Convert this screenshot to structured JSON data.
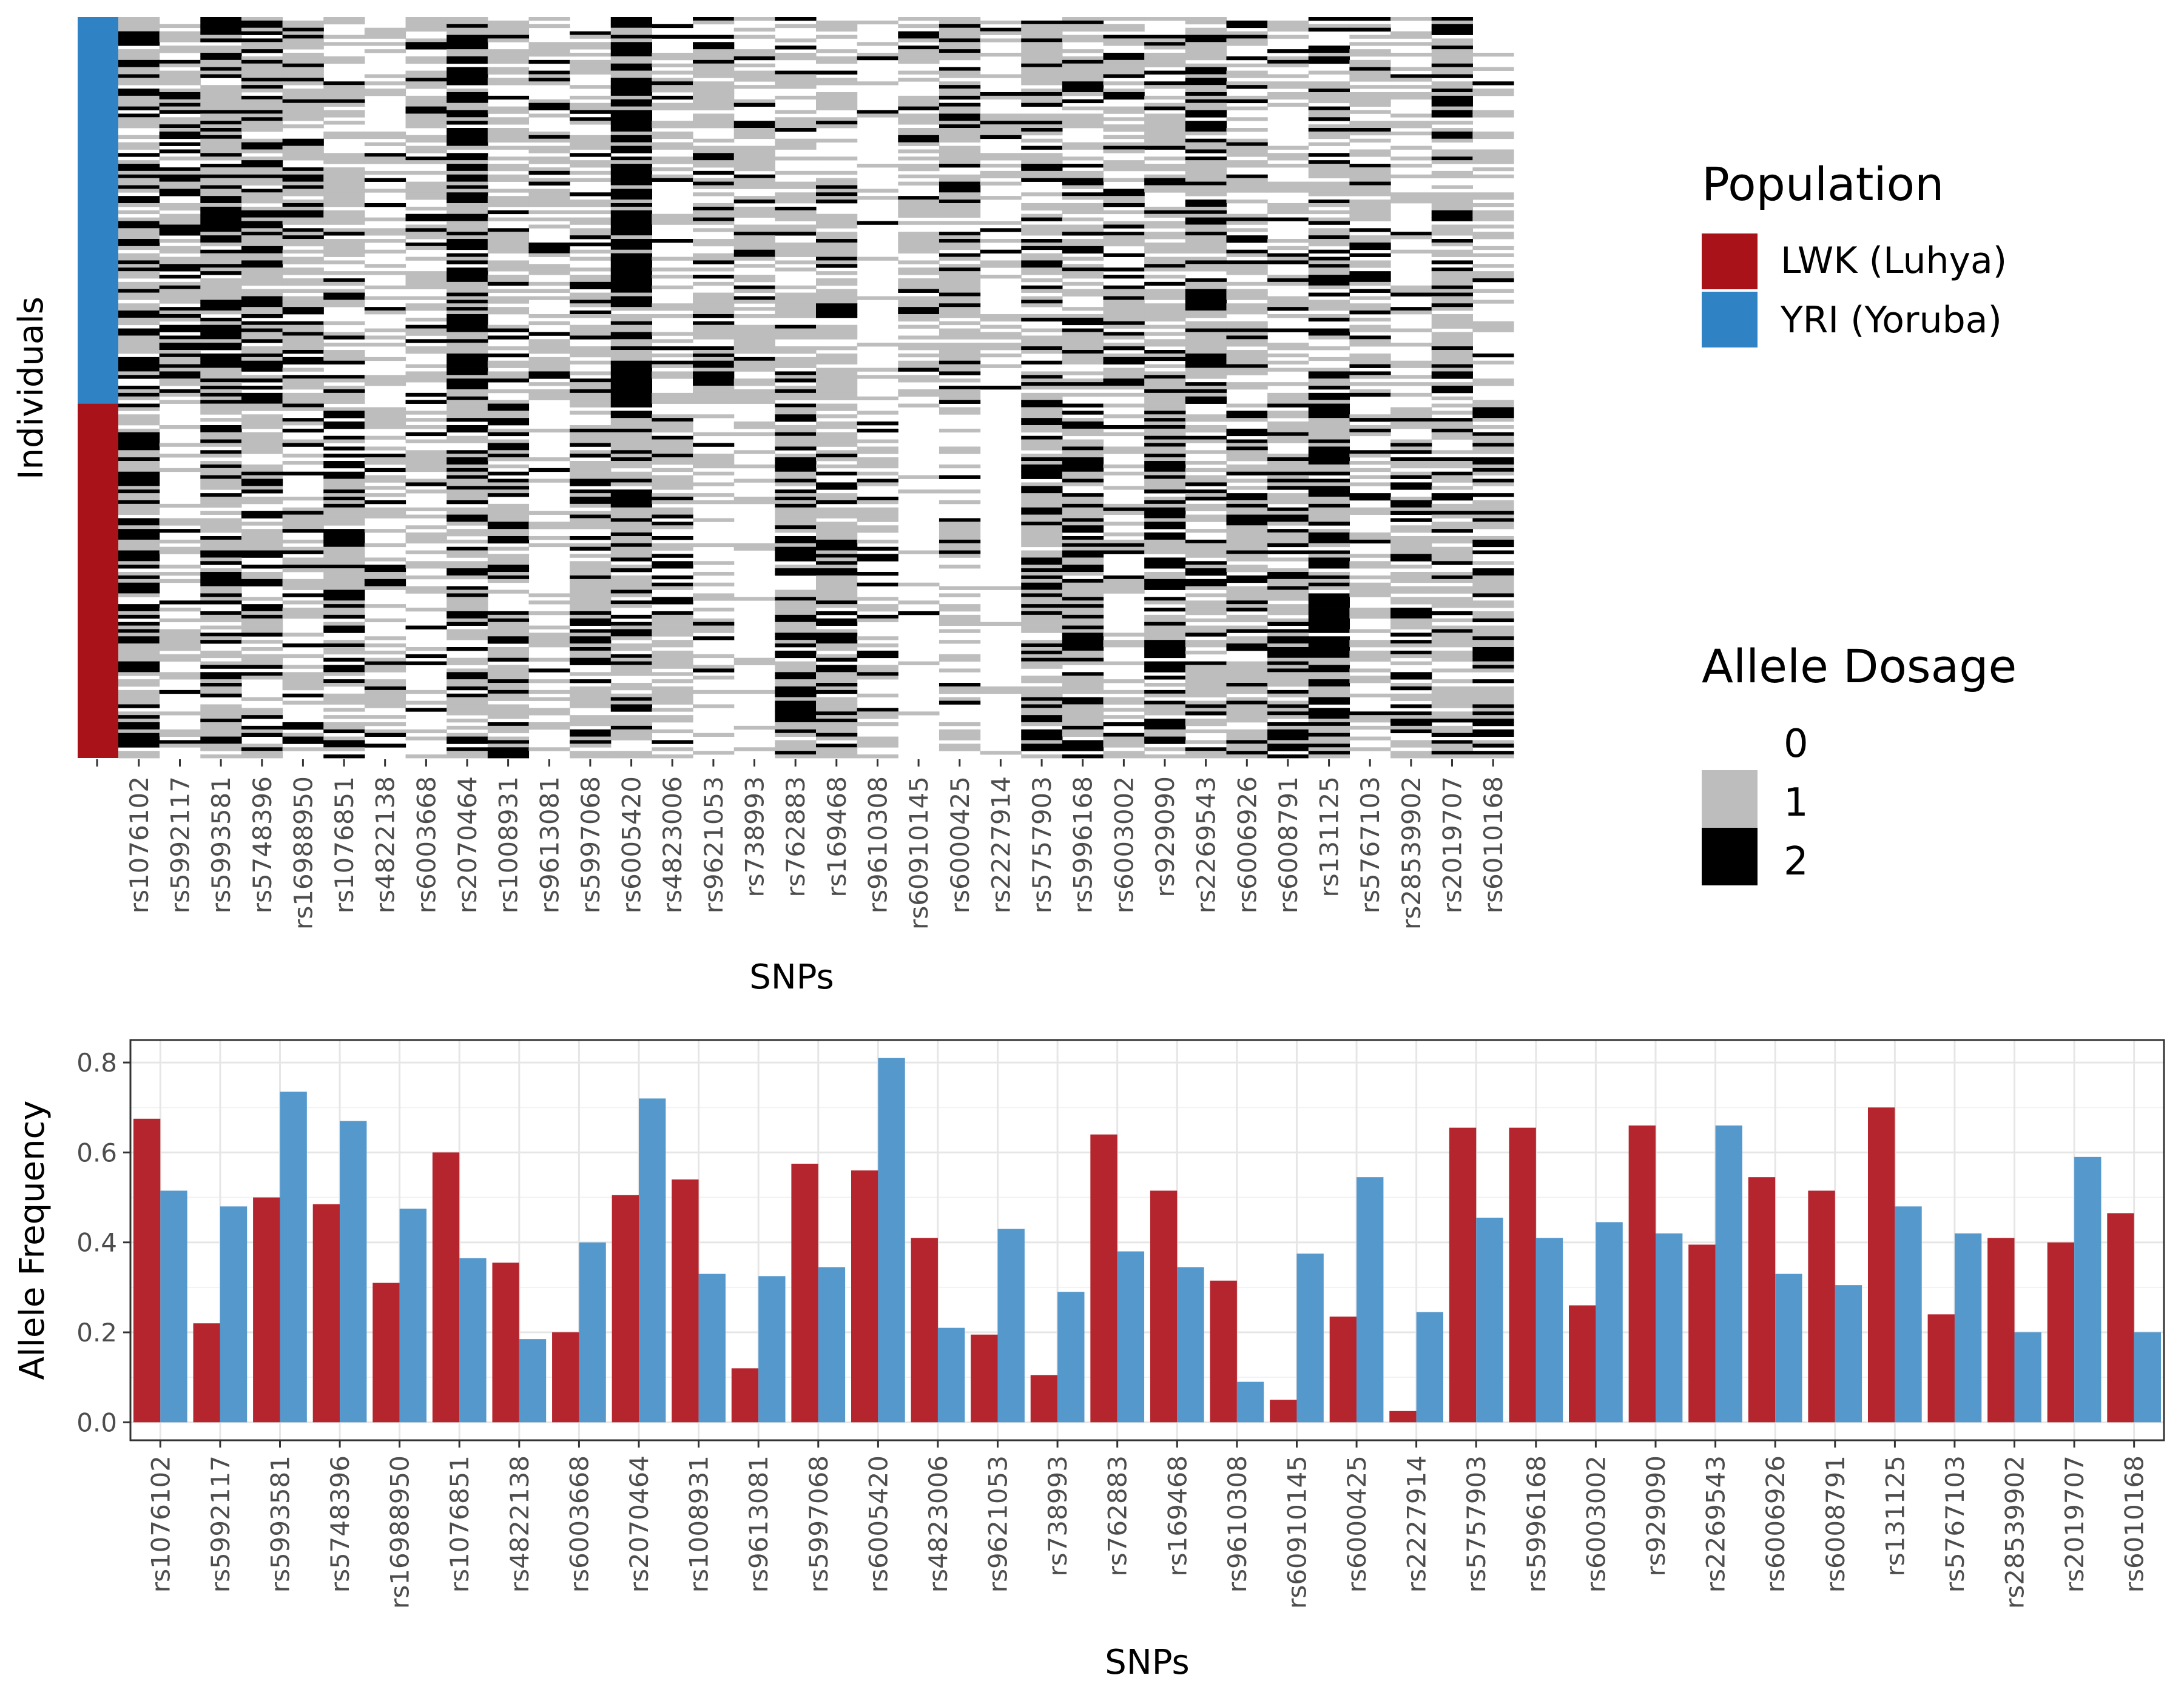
{
  "snps": [
    "rs1076102",
    "rs5992117",
    "rs5993581",
    "rs5748396",
    "rs16988950",
    "rs1076851",
    "rs4822138",
    "rs6003668",
    "rs2070464",
    "rs1008931",
    "rs9613081",
    "rs5997068",
    "rs6005420",
    "rs4823006",
    "rs9621053",
    "rs738993",
    "rs762883",
    "rs169468",
    "rs9610308",
    "rs60910145",
    "rs6000425",
    "rs2227914",
    "rs5757903",
    "rs5996168",
    "rs6003002",
    "rs929090",
    "rs2269543",
    "rs6006926",
    "rs6008791",
    "rs131125",
    "rs5767103",
    "rs28539902",
    "rs2019707",
    "rs6010168"
  ],
  "heatmap": {
    "ylabel": "Individuals",
    "xlabel": "SNPs",
    "populations": [
      {
        "label": "YRI (Yoruba)",
        "color": "#2f83c4",
        "count": 108
      },
      {
        "label": "LWK (Luhya)",
        "color": "#a81218",
        "count": 99
      }
    ],
    "dosage_colors": {
      "0": "#ffffff",
      "1": "#bdbdbd",
      "2": "#000000"
    }
  },
  "legend_population": {
    "title": "Population",
    "items": [
      {
        "label": "LWK (Luhya)",
        "color": "#a81218"
      },
      {
        "label": "YRI (Yoruba)",
        "color": "#2f83c4"
      }
    ]
  },
  "legend_dosage": {
    "title": "Allele Dosage",
    "items": [
      {
        "label": "0",
        "color": "#ffffff"
      },
      {
        "label": "1",
        "color": "#bdbdbd"
      },
      {
        "label": "2",
        "color": "#000000"
      }
    ]
  },
  "chart_data": {
    "type": "bar",
    "xlabel": "SNPs",
    "ylabel": "Allele Frequency",
    "ylim": [
      -0.04,
      0.85
    ],
    "yticks": [
      0.0,
      0.2,
      0.4,
      0.6,
      0.8
    ],
    "ytick_labels": [
      "0.0",
      "0.2",
      "0.4",
      "0.6",
      "0.8"
    ],
    "grid": true,
    "categories": [
      "rs1076102",
      "rs5992117",
      "rs5993581",
      "rs5748396",
      "rs16988950",
      "rs1076851",
      "rs4822138",
      "rs6003668",
      "rs2070464",
      "rs1008931",
      "rs9613081",
      "rs5997068",
      "rs6005420",
      "rs4823006",
      "rs9621053",
      "rs738993",
      "rs762883",
      "rs169468",
      "rs9610308",
      "rs60910145",
      "rs6000425",
      "rs2227914",
      "rs5757903",
      "rs5996168",
      "rs6003002",
      "rs929090",
      "rs2269543",
      "rs6006926",
      "rs6008791",
      "rs131125",
      "rs5767103",
      "rs28539902",
      "rs2019707",
      "rs6010168"
    ],
    "series": [
      {
        "name": "LWK (Luhya)",
        "color": "#b5252e",
        "values": [
          0.675,
          0.22,
          0.5,
          0.485,
          0.31,
          0.6,
          0.355,
          0.2,
          0.505,
          0.54,
          0.12,
          0.575,
          0.56,
          0.41,
          0.195,
          0.105,
          0.64,
          0.515,
          0.315,
          0.05,
          0.235,
          0.025,
          0.655,
          0.655,
          0.26,
          0.66,
          0.395,
          0.545,
          0.515,
          0.7,
          0.24,
          0.41,
          0.4,
          0.465
        ]
      },
      {
        "name": "YRI (Yoruba)",
        "color": "#5598cc",
        "values": [
          0.515,
          0.48,
          0.735,
          0.67,
          0.475,
          0.365,
          0.185,
          0.4,
          0.72,
          0.33,
          0.325,
          0.345,
          0.81,
          0.21,
          0.43,
          0.29,
          0.38,
          0.345,
          0.09,
          0.375,
          0.545,
          0.245,
          0.455,
          0.41,
          0.445,
          0.42,
          0.66,
          0.33,
          0.305,
          0.48,
          0.42,
          0.2,
          0.59,
          0.2
        ]
      }
    ]
  }
}
